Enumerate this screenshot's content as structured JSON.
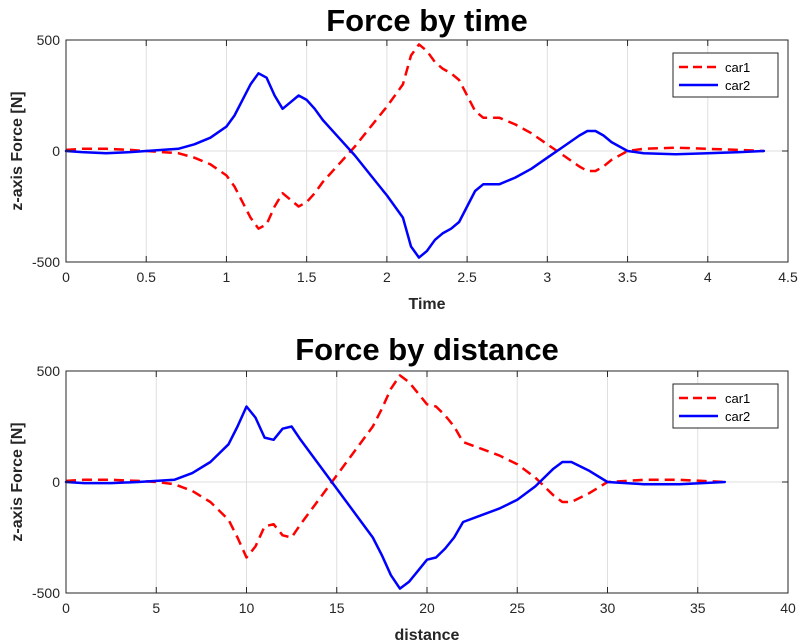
{
  "chart_data": [
    {
      "type": "line",
      "title": "Force by time",
      "xlabel": "Time",
      "ylabel": "z-axis Force [N]",
      "xlim": [
        0,
        4.5
      ],
      "ylim": [
        -500,
        500
      ],
      "xticks": [
        0,
        0.5,
        1,
        1.5,
        2,
        2.5,
        3,
        3.5,
        4,
        4.5
      ],
      "xtick_labels": [
        "0",
        "0.5",
        "1",
        "1.5",
        "2",
        "2.5",
        "3",
        "3.5",
        "4",
        "4.5"
      ],
      "yticks": [
        -500,
        0,
        500
      ],
      "ytick_labels": [
        "-500",
        "0",
        "500"
      ],
      "grid": true,
      "legend": "top-right",
      "series": [
        {
          "name": "car1",
          "style": "dashed",
          "color": "#ff0000",
          "x": [
            0,
            0.1,
            0.25,
            0.4,
            0.5,
            0.6,
            0.7,
            0.8,
            0.9,
            1.0,
            1.05,
            1.1,
            1.15,
            1.2,
            1.25,
            1.3,
            1.35,
            1.4,
            1.45,
            1.5,
            1.55,
            1.6,
            1.7,
            1.8,
            1.9,
            2.0,
            2.1,
            2.15,
            2.2,
            2.25,
            2.3,
            2.35,
            2.4,
            2.45,
            2.5,
            2.55,
            2.6,
            2.7,
            2.8,
            2.9,
            3.0,
            3.1,
            3.2,
            3.25,
            3.3,
            3.35,
            3.4,
            3.5,
            3.6,
            3.8,
            4.0,
            4.2,
            4.35
          ],
          "y": [
            5,
            10,
            10,
            5,
            0,
            -5,
            -10,
            -30,
            -60,
            -110,
            -160,
            -230,
            -300,
            -350,
            -330,
            -250,
            -190,
            -220,
            -250,
            -230,
            -190,
            -140,
            -60,
            20,
            110,
            200,
            300,
            430,
            480,
            450,
            400,
            370,
            350,
            320,
            250,
            180,
            150,
            150,
            120,
            80,
            30,
            -20,
            -70,
            -90,
            -90,
            -70,
            -40,
            0,
            10,
            15,
            10,
            5,
            0
          ]
        },
        {
          "name": "car2",
          "style": "solid",
          "color": "#0000ff",
          "x": [
            0,
            0.1,
            0.25,
            0.4,
            0.5,
            0.6,
            0.7,
            0.8,
            0.9,
            1.0,
            1.05,
            1.1,
            1.15,
            1.2,
            1.25,
            1.3,
            1.35,
            1.4,
            1.45,
            1.5,
            1.55,
            1.6,
            1.7,
            1.8,
            1.9,
            2.0,
            2.1,
            2.15,
            2.2,
            2.25,
            2.3,
            2.35,
            2.4,
            2.45,
            2.5,
            2.55,
            2.6,
            2.7,
            2.8,
            2.9,
            3.0,
            3.1,
            3.2,
            3.25,
            3.3,
            3.35,
            3.4,
            3.5,
            3.6,
            3.8,
            4.0,
            4.2,
            4.35
          ],
          "y": [
            0,
            -5,
            -10,
            -5,
            0,
            5,
            10,
            30,
            60,
            110,
            160,
            230,
            300,
            350,
            330,
            250,
            190,
            220,
            250,
            230,
            190,
            140,
            60,
            -20,
            -110,
            -200,
            -300,
            -430,
            -480,
            -450,
            -400,
            -370,
            -350,
            -320,
            -250,
            -180,
            -150,
            -150,
            -120,
            -80,
            -30,
            20,
            70,
            90,
            90,
            70,
            40,
            0,
            -10,
            -15,
            -10,
            -5,
            0
          ]
        }
      ]
    },
    {
      "type": "line",
      "title": "Force by distance",
      "xlabel": "distance",
      "ylabel": "z-axis Force [N]",
      "xlim": [
        0,
        40
      ],
      "ylim": [
        -500,
        500
      ],
      "xticks": [
        0,
        5,
        10,
        15,
        20,
        25,
        30,
        35,
        40
      ],
      "xtick_labels": [
        "0",
        "5",
        "10",
        "15",
        "20",
        "25",
        "30",
        "35",
        "40"
      ],
      "yticks": [
        -500,
        0,
        500
      ],
      "ytick_labels": [
        "-500",
        "0",
        "500"
      ],
      "grid": true,
      "legend": "top-right",
      "series": [
        {
          "name": "car1",
          "style": "dashed",
          "color": "#ff0000",
          "x": [
            0,
            1,
            2.5,
            4,
            5,
            6,
            7,
            8,
            9,
            9.5,
            10,
            10.5,
            11,
            11.5,
            12,
            12.5,
            13,
            14,
            15,
            16,
            17,
            17.5,
            18,
            18.5,
            19,
            19.5,
            20,
            20.5,
            21,
            21.5,
            22,
            23,
            24,
            25,
            26,
            27,
            27.5,
            28,
            29,
            30,
            32,
            34,
            36.5
          ],
          "y": [
            5,
            10,
            10,
            5,
            0,
            -10,
            -40,
            -90,
            -170,
            -250,
            -340,
            -290,
            -200,
            -190,
            -240,
            -250,
            -190,
            -80,
            30,
            140,
            250,
            330,
            420,
            480,
            450,
            400,
            350,
            340,
            300,
            250,
            180,
            150,
            120,
            80,
            20,
            -60,
            -90,
            -90,
            -50,
            0,
            10,
            10,
            0
          ]
        },
        {
          "name": "car2",
          "style": "solid",
          "color": "#0000ff",
          "x": [
            0,
            1,
            2.5,
            4,
            5,
            6,
            7,
            8,
            9,
            9.5,
            10,
            10.5,
            11,
            11.5,
            12,
            12.5,
            13,
            14,
            15,
            16,
            17,
            17.5,
            18,
            18.5,
            19,
            19.5,
            20,
            20.5,
            21,
            21.5,
            22,
            23,
            24,
            25,
            26,
            27,
            27.5,
            28,
            29,
            30,
            32,
            34,
            36.5
          ],
          "y": [
            0,
            -5,
            -5,
            0,
            5,
            10,
            40,
            90,
            170,
            250,
            340,
            290,
            200,
            190,
            240,
            250,
            190,
            80,
            -30,
            -140,
            -250,
            -330,
            -420,
            -480,
            -450,
            -400,
            -350,
            -340,
            -300,
            -250,
            -180,
            -150,
            -120,
            -80,
            -20,
            60,
            90,
            90,
            50,
            0,
            -10,
            -10,
            0
          ]
        }
      ]
    }
  ]
}
